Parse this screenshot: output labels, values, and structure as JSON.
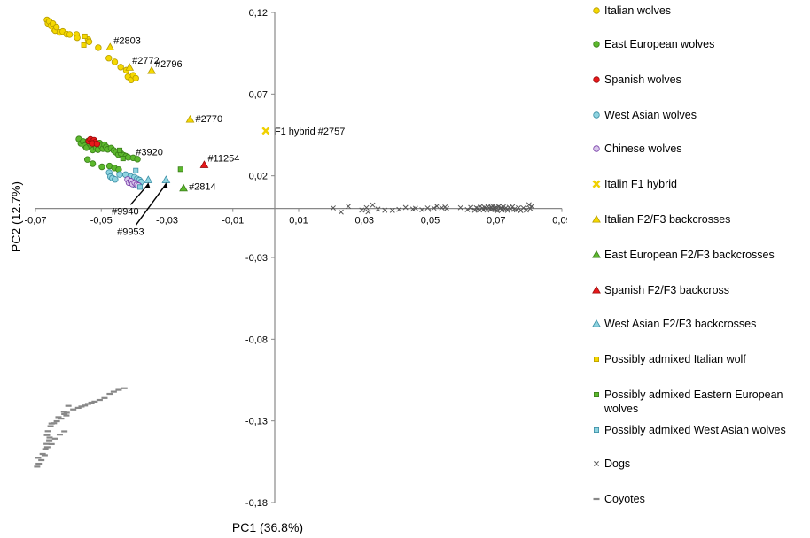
{
  "chart_data": {
    "type": "scatter",
    "title": "",
    "xlabel": "PC1 (36.8%)",
    "ylabel": "PC2  (12.7%)",
    "xlim": [
      -0.07,
      0.09
    ],
    "ylim": [
      -0.18,
      0.12
    ],
    "x_ticks": [
      "-0,07",
      "-0,05",
      "-0,03",
      "-0,01",
      "0,01",
      "0,03",
      "0,05",
      "0,07",
      "0,09"
    ],
    "y_ticks": [
      "0,12",
      "0,07",
      "0,02",
      "-0,03",
      "-0,08",
      "-0,13",
      "-0,18"
    ],
    "grid": false,
    "legend_position": "right",
    "series": [
      {
        "name": "Italian wolves",
        "marker": "circle",
        "color": "#f5d800",
        "stroke": "#b79d00",
        "points": [
          [
            -0.0665,
            0.1154
          ],
          [
            -0.0662,
            0.1133
          ],
          [
            -0.0658,
            0.1145
          ],
          [
            -0.0653,
            0.1118
          ],
          [
            -0.0647,
            0.1131
          ],
          [
            -0.0645,
            0.11
          ],
          [
            -0.064,
            0.1089
          ],
          [
            -0.0636,
            0.111
          ],
          [
            -0.0626,
            0.1078
          ],
          [
            -0.0617,
            0.1083
          ],
          [
            -0.0605,
            0.1067
          ],
          [
            -0.0596,
            0.1065
          ],
          [
            -0.0575,
            0.1065
          ],
          [
            -0.0573,
            0.1045
          ],
          [
            -0.054,
            0.1034
          ],
          [
            -0.0537,
            0.102
          ],
          [
            -0.0509,
            0.0984
          ],
          [
            -0.0477,
            0.092
          ],
          [
            -0.0459,
            0.0897
          ],
          [
            -0.0441,
            0.0865
          ],
          [
            -0.0424,
            0.0846
          ],
          [
            -0.0419,
            0.0806
          ],
          [
            -0.0409,
            0.0787
          ],
          [
            -0.0403,
            0.0815
          ],
          [
            -0.0395,
            0.0797
          ]
        ]
      },
      {
        "name": "East European wolves",
        "marker": "circle",
        "color": "#5cb82d",
        "stroke": "#3a7d1a",
        "points": [
          [
            -0.0568,
            0.0425
          ],
          [
            -0.0562,
            0.0398
          ],
          [
            -0.0555,
            0.041
          ],
          [
            -0.055,
            0.0385
          ],
          [
            -0.0545,
            0.0372
          ],
          [
            -0.054,
            0.0413
          ],
          [
            -0.0535,
            0.0396
          ],
          [
            -0.053,
            0.038
          ],
          [
            -0.0526,
            0.0358
          ],
          [
            -0.052,
            0.039
          ],
          [
            -0.0515,
            0.0372
          ],
          [
            -0.051,
            0.036
          ],
          [
            -0.0505,
            0.04
          ],
          [
            -0.05,
            0.0382
          ],
          [
            -0.0495,
            0.0366
          ],
          [
            -0.049,
            0.039
          ],
          [
            -0.0485,
            0.0376
          ],
          [
            -0.048,
            0.0362
          ],
          [
            -0.047,
            0.037
          ],
          [
            -0.0462,
            0.0355
          ],
          [
            -0.0455,
            0.0344
          ],
          [
            -0.0448,
            0.033
          ],
          [
            -0.044,
            0.0337
          ],
          [
            -0.0432,
            0.0326
          ],
          [
            -0.0425,
            0.032
          ],
          [
            -0.0418,
            0.0313
          ],
          [
            -0.0403,
            0.031
          ],
          [
            -0.039,
            0.0302
          ],
          [
            -0.0542,
            0.03
          ],
          [
            -0.0526,
            0.0274
          ],
          [
            -0.0498,
            0.0255
          ],
          [
            -0.0475,
            0.026
          ],
          [
            -0.046,
            0.0248
          ],
          [
            -0.0447,
            0.0238
          ]
        ]
      },
      {
        "name": "Spanish wolves",
        "marker": "circle",
        "color": "#e8181a",
        "stroke": "#9a0d0d",
        "points": [
          [
            -0.0538,
            0.0412
          ],
          [
            -0.0533,
            0.0423
          ],
          [
            -0.0528,
            0.041
          ],
          [
            -0.0522,
            0.0418
          ],
          [
            -0.0518,
            0.0405
          ],
          [
            -0.0527,
            0.0398
          ],
          [
            -0.0513,
            0.0395
          ]
        ]
      },
      {
        "name": "West Asian wolves",
        "marker": "circle",
        "color": "#8fd4e0",
        "stroke": "#3b8ea5",
        "points": [
          [
            -0.0476,
            0.022
          ],
          [
            -0.0472,
            0.0195
          ],
          [
            -0.0466,
            0.0186
          ],
          [
            -0.0458,
            0.0178
          ],
          [
            -0.0444,
            0.0208
          ],
          [
            -0.0426,
            0.0207
          ],
          [
            -0.0411,
            0.0196
          ],
          [
            -0.0399,
            0.0191
          ],
          [
            -0.0391,
            0.0181
          ],
          [
            -0.0384,
            0.0174
          ],
          [
            -0.0379,
            0.0162
          ],
          [
            -0.0397,
            0.0143
          ],
          [
            -0.0385,
            0.0139
          ]
        ]
      },
      {
        "name": "Chinese wolves",
        "marker": "circle",
        "color": "#d8c8ec",
        "stroke": "#7a3ea8",
        "points": [
          [
            -0.042,
            0.0177
          ],
          [
            -0.0416,
            0.0158
          ],
          [
            -0.041,
            0.0167
          ],
          [
            -0.0405,
            0.015
          ],
          [
            -0.0398,
            0.0158
          ],
          [
            -0.0392,
            0.0146
          ],
          [
            -0.0387,
            0.014
          ]
        ]
      },
      {
        "name": "Italin F1 hybrid",
        "marker": "x-bold",
        "color": "#f0d000",
        "stroke": "#c8a800",
        "points": [
          [
            0.0,
            0.0475
          ]
        ]
      },
      {
        "name": "Italian F2/F3 backcrosses",
        "marker": "triangle",
        "color": "#f5d800",
        "stroke": "#b79d00",
        "points": [
          [
            -0.0473,
            0.0987
          ],
          [
            -0.0414,
            0.0863
          ],
          [
            -0.0347,
            0.0843
          ],
          [
            -0.023,
            0.0545
          ]
        ]
      },
      {
        "name": "East European F2/F3 backcrosses",
        "marker": "triangle",
        "color": "#5cb82d",
        "stroke": "#3a7d1a",
        "points": [
          [
            -0.025,
            0.0124
          ]
        ]
      },
      {
        "name": "Spanish F2/F3 backcross",
        "marker": "triangle",
        "color": "#e8181a",
        "stroke": "#9a0d0d",
        "points": [
          [
            -0.0187,
            0.0267
          ]
        ]
      },
      {
        "name": "West Asian F2/F3 backcrosses",
        "marker": "triangle",
        "color": "#8fd4e0",
        "stroke": "#3b8ea5",
        "points": [
          [
            -0.0357,
            0.0175
          ],
          [
            -0.0303,
            0.0175
          ]
        ]
      },
      {
        "name": "Possibly admixed Italian wolf",
        "marker": "square",
        "color": "#f5d800",
        "stroke": "#b79d00",
        "points": [
          [
            -0.055,
            0.1054
          ],
          [
            -0.0553,
            0.1
          ]
        ]
      },
      {
        "name": "Possibly admixed Eastern European wolves",
        "marker": "square",
        "color": "#5cb82d",
        "stroke": "#3a7d1a",
        "points": [
          [
            -0.0444,
            0.0356
          ],
          [
            -0.0434,
            0.0306
          ],
          [
            -0.0259,
            0.024
          ]
        ]
      },
      {
        "name": "Possibly admixed West Asian wolves",
        "marker": "square",
        "color": "#8fd4e0",
        "stroke": "#3b8ea5",
        "points": [
          [
            -0.0395,
            0.0232
          ],
          [
            -0.0382,
            0.0131
          ]
        ]
      },
      {
        "name": "Dogs",
        "marker": "x",
        "color": "#555555",
        "stroke": "#555555",
        "points": [
          [
            0.0205,
            0.0003
          ],
          [
            0.0229,
            -0.0022
          ],
          [
            0.0251,
            0.0013
          ],
          [
            0.0292,
            -0.001
          ],
          [
            0.0306,
            0.0005
          ],
          [
            0.0311,
            -0.0021
          ],
          [
            0.0325,
            0.0021
          ],
          [
            0.0341,
            -0.0004
          ],
          [
            0.0362,
            -0.0011
          ],
          [
            0.0385,
            -0.0012
          ],
          [
            0.0405,
            -0.0006
          ],
          [
            0.0425,
            0.0006
          ],
          [
            0.0447,
            -0.0004
          ],
          [
            0.0455,
            0.0001
          ],
          [
            0.0475,
            -0.0008
          ],
          [
            0.0492,
            0.0003
          ],
          [
            0.0511,
            0.0002
          ],
          [
            0.052,
            0.0014
          ],
          [
            0.0535,
            0.0004
          ],
          [
            0.055,
            -0.0001
          ],
          [
            0.0545,
            0.0009
          ],
          [
            0.0592,
            0.0005
          ],
          [
            0.0613,
            -0.0007
          ],
          [
            0.0623,
            0.0006
          ],
          [
            0.0635,
            -0.0011
          ],
          [
            0.064,
            0.0004
          ],
          [
            0.0645,
            -0.0001
          ],
          [
            0.065,
            -0.0009
          ],
          [
            0.0652,
            0.0013
          ],
          [
            0.0658,
            0.0002
          ],
          [
            0.0662,
            -0.0006
          ],
          [
            0.0665,
            0.0007
          ],
          [
            0.0668,
            0.0001
          ],
          [
            0.0672,
            -0.001
          ],
          [
            0.0675,
            0.0012
          ],
          [
            0.0678,
            0.0003
          ],
          [
            0.0682,
            -0.0005
          ],
          [
            0.0685,
            0.0008
          ],
          [
            0.0688,
            -0.0003
          ],
          [
            0.069,
            0.0016
          ],
          [
            0.0695,
            0.0002
          ],
          [
            0.0698,
            -0.0008
          ],
          [
            0.07,
            0.0006
          ],
          [
            0.0704,
            -0.0014
          ],
          [
            0.0708,
            0.0012
          ],
          [
            0.0712,
            -0.0001
          ],
          [
            0.0715,
            0.0005
          ],
          [
            0.0718,
            -0.0009
          ],
          [
            0.0722,
            0.001
          ],
          [
            0.0726,
            -0.0004
          ],
          [
            0.073,
            0.0003
          ],
          [
            0.0735,
            -0.0012
          ],
          [
            0.074,
            0.0007
          ],
          [
            0.0745,
            -0.0002
          ],
          [
            0.075,
            0.0011
          ],
          [
            0.0755,
            -0.0006
          ],
          [
            0.0762,
            -0.0009
          ],
          [
            0.0768,
            0.0004
          ],
          [
            0.0775,
            -0.0013
          ],
          [
            0.0783,
            0.0003
          ],
          [
            0.0792,
            -0.001
          ],
          [
            0.08,
            0.0023
          ],
          [
            0.0808,
            0.0013
          ],
          [
            0.0804,
            -0.0001
          ]
        ]
      },
      {
        "name": "Coyotes",
        "marker": "dash",
        "color": "#888888",
        "stroke": "#888888",
        "points": [
          [
            -0.06,
            -0.1208
          ],
          [
            -0.0613,
            -0.1244
          ],
          [
            -0.063,
            -0.1277
          ],
          [
            -0.0644,
            -0.1314
          ],
          [
            -0.0654,
            -0.1332
          ],
          [
            -0.0605,
            -0.125
          ],
          [
            -0.0585,
            -0.123
          ],
          [
            -0.057,
            -0.122
          ],
          [
            -0.056,
            -0.1212
          ],
          [
            -0.055,
            -0.1206
          ],
          [
            -0.054,
            -0.1196
          ],
          [
            -0.053,
            -0.1188
          ],
          [
            -0.052,
            -0.1182
          ],
          [
            -0.0505,
            -0.1172
          ],
          [
            -0.049,
            -0.116
          ],
          [
            -0.0474,
            -0.1134
          ],
          [
            -0.0462,
            -0.1121
          ],
          [
            -0.0447,
            -0.111
          ],
          [
            -0.043,
            -0.11
          ],
          [
            -0.0612,
            -0.1258
          ],
          [
            -0.0606,
            -0.1267
          ],
          [
            -0.0622,
            -0.1286
          ],
          [
            -0.0635,
            -0.1302
          ],
          [
            -0.0651,
            -0.1316
          ],
          [
            -0.0662,
            -0.1363
          ],
          [
            -0.0665,
            -0.1387
          ],
          [
            -0.0657,
            -0.1402
          ],
          [
            -0.0658,
            -0.1419
          ],
          [
            -0.0666,
            -0.1441
          ],
          [
            -0.0664,
            -0.1461
          ],
          [
            -0.067,
            -0.1472
          ],
          [
            -0.0678,
            -0.1502
          ],
          [
            -0.0692,
            -0.1526
          ],
          [
            -0.069,
            -0.1562
          ],
          [
            -0.0695,
            -0.158
          ],
          [
            -0.0682,
            -0.154
          ],
          [
            -0.0672,
            -0.151
          ],
          [
            -0.0651,
            -0.1442
          ],
          [
            -0.064,
            -0.1409
          ],
          [
            -0.0626,
            -0.1384
          ],
          [
            -0.0612,
            -0.1364
          ]
        ]
      }
    ],
    "annotations": [
      {
        "text": "#2803",
        "x": -0.0473,
        "y": 0.0987
      },
      {
        "text": "#2772",
        "x": -0.0414,
        "y": 0.0863
      },
      {
        "text": "#2796",
        "x": -0.0347,
        "y": 0.0843
      },
      {
        "text": "#2770",
        "x": -0.023,
        "y": 0.0545
      },
      {
        "text": "F1 hybrid #2757",
        "x": 0.0,
        "y": 0.0475
      },
      {
        "text": "#3920",
        "x": -0.0403,
        "y": 0.031
      },
      {
        "text": "#11254",
        "x": -0.0187,
        "y": 0.0267
      },
      {
        "text": "#2814",
        "x": -0.025,
        "y": 0.0124
      },
      {
        "text": "#9940",
        "x": -0.0357,
        "y": 0.0175,
        "arrow": true
      },
      {
        "text": "#9953",
        "x": -0.0303,
        "y": 0.0175,
        "arrow": true
      }
    ]
  },
  "legend": [
    {
      "label": "Italian wolves",
      "marker": "circle",
      "color": "#f5d800",
      "stroke": "#b79d00"
    },
    {
      "label": "East European wolves",
      "marker": "circle",
      "color": "#5cb82d",
      "stroke": "#3a7d1a"
    },
    {
      "label": "Spanish wolves",
      "marker": "circle",
      "color": "#e8181a",
      "stroke": "#9a0d0d"
    },
    {
      "label": "West Asian wolves",
      "marker": "circle",
      "color": "#8fd4e0",
      "stroke": "#3b8ea5"
    },
    {
      "label": "Chinese wolves",
      "marker": "circle",
      "color": "#d8c8ec",
      "stroke": "#7a3ea8"
    },
    {
      "label": "Italin F1 hybrid",
      "marker": "x-bold",
      "color": "#f0d000",
      "stroke": "#c8a800"
    },
    {
      "label": "Italian F2/F3 backcrosses",
      "marker": "triangle",
      "color": "#f5d800",
      "stroke": "#b79d00"
    },
    {
      "label": "East European F2/F3 backcrosses",
      "marker": "triangle",
      "color": "#5cb82d",
      "stroke": "#3a7d1a"
    },
    {
      "label": "Spanish F2/F3 backcross",
      "marker": "triangle",
      "color": "#e8181a",
      "stroke": "#9a0d0d"
    },
    {
      "label": "West Asian F2/F3 backcrosses",
      "marker": "triangle",
      "color": "#8fd4e0",
      "stroke": "#3b8ea5"
    },
    {
      "label": "Possibly admixed Italian wolf",
      "marker": "square",
      "color": "#f5d800",
      "stroke": "#b79d00"
    },
    {
      "label": "Possibly admixed Eastern European wolves",
      "marker": "square",
      "color": "#5cb82d",
      "stroke": "#3a7d1a"
    },
    {
      "label": "Possibly admixed West Asian wolves",
      "marker": "square",
      "color": "#8fd4e0",
      "stroke": "#3b8ea5"
    },
    {
      "label": "Dogs",
      "marker": "x",
      "color": "#555555",
      "stroke": "#555555"
    },
    {
      "label": "Coyotes",
      "marker": "dash",
      "color": "#888888",
      "stroke": "#888888"
    }
  ]
}
